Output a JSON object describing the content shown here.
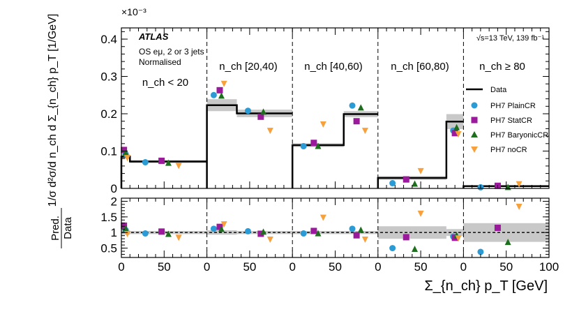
{
  "chart_data": [
    {
      "type": "step",
      "panel": "main",
      "ylabel": "1/σ d²σ/d n_ch d Σ_{n_ch} p_T [1/GeV]",
      "exponent_label": "×10⁻³",
      "ylim": [
        0,
        0.43
      ],
      "yticks": [
        0,
        0.1,
        0.2,
        0.3,
        0.4
      ],
      "yticklabels": [
        "0",
        "0.1",
        "0.2",
        "0.3",
        "0.4"
      ],
      "experiment_label": "ATLAS",
      "selection_lines": [
        "OS eμ, 2 or 3 jets",
        "Normalised"
      ],
      "energy_label": "√s=13 TeV, 139 fb⁻¹",
      "legend_position": "right",
      "regions": [
        "n_ch < 20",
        "n_ch [20,40)",
        "n_ch [40,60)",
        "n_ch [60,80)",
        "n_ch ≥ 80"
      ],
      "data_bins": [
        {
          "region": 0,
          "x0": 0,
          "x1": 10,
          "y": 0.085,
          "unc": 0.006
        },
        {
          "region": 0,
          "x0": 10,
          "x1": 100,
          "y": 0.072,
          "unc": 0.004
        },
        {
          "region": 1,
          "x0": 0,
          "x1": 35,
          "y": 0.223,
          "unc": 0.016
        },
        {
          "region": 1,
          "x0": 35,
          "x1": 100,
          "y": 0.201,
          "unc": 0.01
        },
        {
          "region": 2,
          "x0": 0,
          "x1": 60,
          "y": 0.116,
          "unc": 0.005
        },
        {
          "region": 2,
          "x0": 60,
          "x1": 100,
          "y": 0.199,
          "unc": 0.008
        },
        {
          "region": 3,
          "x0": 0,
          "x1": 80,
          "y": 0.028,
          "unc": 0.005
        },
        {
          "region": 3,
          "x0": 80,
          "x1": 100,
          "y": 0.179,
          "unc": 0.02
        },
        {
          "region": 4,
          "x0": 0,
          "x1": 100,
          "y": 0.006,
          "unc": 0.002
        }
      ],
      "series": [
        {
          "name": "PH7 PlainCR",
          "marker": "circle",
          "color": "#2b9bd6",
          "points": [
            [
              0,
              5,
              0.092
            ],
            [
              0,
              28,
              0.07
            ],
            [
              1,
              8,
              0.25
            ],
            [
              1,
              48,
              0.208
            ],
            [
              2,
              13,
              0.113
            ],
            [
              2,
              70,
              0.222
            ],
            [
              3,
              17,
              0.014
            ],
            [
              3,
              88,
              0.155
            ],
            [
              4,
              20,
              0.003
            ]
          ]
        },
        {
          "name": "PH7 StatCR",
          "marker": "square",
          "color": "#9b199b",
          "points": [
            [
              0,
              3,
              0.103
            ],
            [
              0,
              47,
              0.074
            ],
            [
              1,
              15,
              0.263
            ],
            [
              1,
              63,
              0.192
            ],
            [
              2,
              25,
              0.122
            ],
            [
              2,
              75,
              0.18
            ],
            [
              3,
              33,
              0.024
            ],
            [
              3,
              90,
              0.148
            ],
            [
              4,
              40,
              0.007
            ]
          ]
        },
        {
          "name": "PH7 BaryonicCR",
          "marker": "triangle-up",
          "color": "#1d6e1d",
          "points": [
            [
              0,
              5,
              0.096
            ],
            [
              0,
              55,
              0.069
            ],
            [
              1,
              17,
              0.249
            ],
            [
              1,
              66,
              0.206
            ],
            [
              2,
              30,
              0.114
            ],
            [
              2,
              80,
              0.217
            ],
            [
              3,
              43,
              0.013
            ],
            [
              3,
              92,
              0.164
            ],
            [
              4,
              52,
              0.004
            ]
          ]
        },
        {
          "name": "PH7 noCR",
          "marker": "triangle-down",
          "color": "#f7a13d",
          "points": [
            [
              0,
              7,
              0.081
            ],
            [
              0,
              67,
              0.06
            ],
            [
              1,
              20,
              0.28
            ],
            [
              1,
              74,
              0.154
            ],
            [
              2,
              36,
              0.171
            ],
            [
              2,
              85,
              0.154
            ],
            [
              3,
              50,
              0.046
            ],
            [
              3,
              94,
              0.145
            ],
            [
              4,
              65,
              0.011
            ]
          ]
        }
      ],
      "legend": [
        "Data",
        "PH7 PlainCR",
        "PH7 StatCR",
        "PH7 BaryonicCR",
        "PH7 noCR"
      ]
    },
    {
      "type": "ratio",
      "panel": "ratio",
      "ylabel": "Pred. / Data",
      "ylabel_numerator": "Pred.",
      "ylabel_denominator": "Data",
      "ylim": [
        0.2,
        2.1
      ],
      "yticks": [
        0.5,
        1,
        1.5,
        2
      ],
      "yticklabels": [
        "0.5",
        "1",
        "1.5",
        "2"
      ],
      "xlabel": "Σ_{n_ch} p_T [GeV]",
      "xlim_per_region": [
        0,
        100
      ],
      "xticklabels": [
        "0",
        "50",
        "0",
        "50",
        "0",
        "50",
        "0",
        "50",
        "0",
        "50",
        "100"
      ],
      "unc_bands": [
        {
          "region": 0,
          "x0": 0,
          "x1": 10,
          "unc": 0.07
        },
        {
          "region": 0,
          "x0": 10,
          "x1": 100,
          "unc": 0.05
        },
        {
          "region": 1,
          "x0": 0,
          "x1": 35,
          "unc": 0.07
        },
        {
          "region": 1,
          "x0": 35,
          "x1": 100,
          "unc": 0.05
        },
        {
          "region": 2,
          "x0": 0,
          "x1": 60,
          "unc": 0.05
        },
        {
          "region": 2,
          "x0": 60,
          "x1": 100,
          "unc": 0.05
        },
        {
          "region": 3,
          "x0": 0,
          "x1": 80,
          "unc": 0.2
        },
        {
          "region": 3,
          "x0": 80,
          "x1": 100,
          "unc": 0.11
        },
        {
          "region": 4,
          "x0": 0,
          "x1": 100,
          "unc": 0.3
        }
      ],
      "series": [
        {
          "name": "PH7 PlainCR",
          "marker": "circle",
          "color": "#2b9bd6",
          "points": [
            [
              0,
              5,
              1.08
            ],
            [
              0,
              28,
              0.97
            ],
            [
              1,
              8,
              1.12
            ],
            [
              1,
              48,
              1.04
            ],
            [
              2,
              13,
              0.97
            ],
            [
              2,
              70,
              1.12
            ],
            [
              3,
              17,
              0.5
            ],
            [
              3,
              88,
              0.87
            ],
            [
              4,
              20,
              0.38
            ]
          ]
        },
        {
          "name": "PH7 StatCR",
          "marker": "square",
          "color": "#9b199b",
          "points": [
            [
              0,
              3,
              1.22
            ],
            [
              0,
              47,
              1.03
            ],
            [
              1,
              15,
              1.18
            ],
            [
              1,
              63,
              0.96
            ],
            [
              2,
              25,
              1.05
            ],
            [
              2,
              75,
              0.91
            ],
            [
              3,
              33,
              0.85
            ],
            [
              3,
              90,
              0.83
            ],
            [
              4,
              40,
              1.15
            ]
          ]
        },
        {
          "name": "PH7 BaryonicCR",
          "marker": "triangle-up",
          "color": "#1d6e1d",
          "points": [
            [
              0,
              5,
              1.13
            ],
            [
              0,
              55,
              0.96
            ],
            [
              1,
              17,
              1.12
            ],
            [
              1,
              66,
              1.03
            ],
            [
              2,
              30,
              0.98
            ],
            [
              2,
              80,
              1.09
            ],
            [
              3,
              43,
              0.48
            ],
            [
              3,
              92,
              0.92
            ],
            [
              4,
              52,
              0.7
            ]
          ]
        },
        {
          "name": "PH7 noCR",
          "marker": "triangle-down",
          "color": "#f7a13d",
          "points": [
            [
              0,
              7,
              0.95
            ],
            [
              0,
              67,
              0.83
            ],
            [
              1,
              20,
              1.26
            ],
            [
              1,
              74,
              0.77
            ],
            [
              2,
              36,
              1.47
            ],
            [
              2,
              85,
              0.77
            ],
            [
              3,
              50,
              1.6
            ],
            [
              3,
              94,
              0.81
            ],
            [
              4,
              65,
              1.82
            ]
          ]
        }
      ]
    }
  ]
}
